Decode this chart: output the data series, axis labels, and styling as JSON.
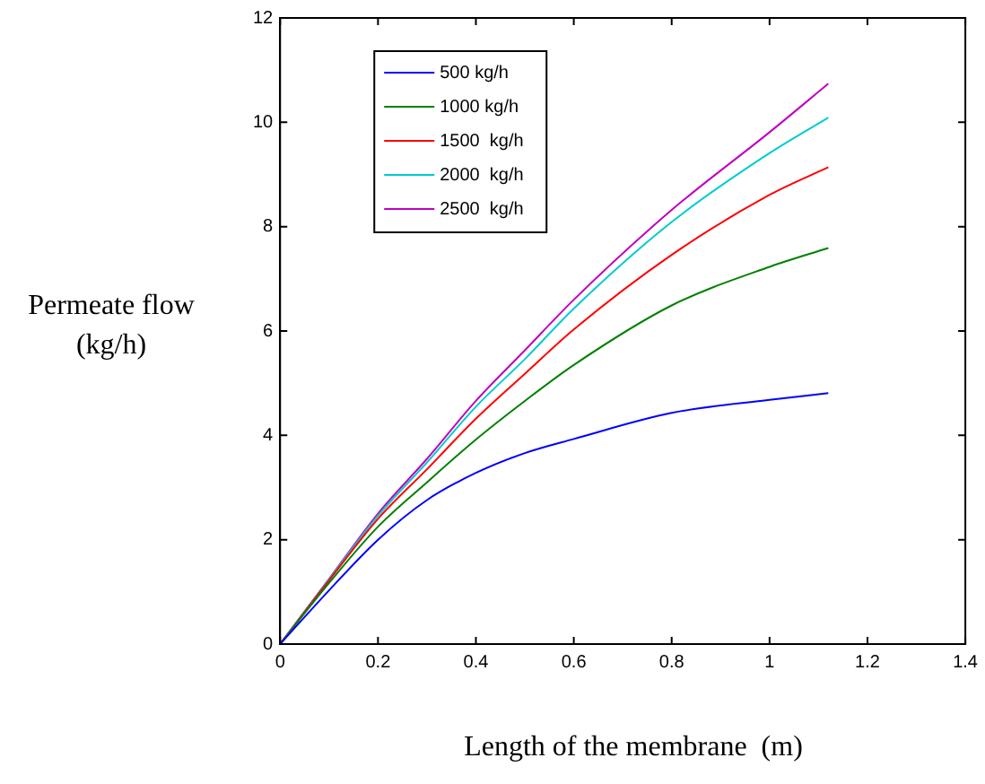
{
  "chart_data": {
    "type": "line",
    "xlabel": "Length of the membrane  (m)",
    "ylabel": "Permeate flow (kg/h)",
    "xlim": [
      0,
      1.4
    ],
    "xticks": [
      0,
      0.2,
      0.4,
      0.6,
      0.8,
      1,
      1.2,
      1.4
    ],
    "ylim": [
      0,
      12
    ],
    "yticks": [
      0,
      2,
      4,
      6,
      8,
      10,
      12
    ],
    "grid": false,
    "legend": "top left",
    "marker": "none",
    "line_style": "solid",
    "x": [
      0,
      0.1,
      0.2,
      0.3,
      0.4,
      0.5,
      0.6,
      0.8,
      1.0,
      1.12
    ],
    "series": [
      {
        "name": "500 kg/h",
        "color": "#0000ff",
        "values": [
          0,
          1.03,
          2.0,
          2.76,
          3.28,
          3.66,
          3.93,
          4.43,
          4.68,
          4.81
        ]
      },
      {
        "name": "1000 kg/h",
        "color": "#008000",
        "values": [
          0,
          1.17,
          2.25,
          3.1,
          3.92,
          4.66,
          5.35,
          6.49,
          7.23,
          7.59
        ]
      },
      {
        "name": "1500  kg/h",
        "color": "#ff0000",
        "values": [
          0,
          1.22,
          2.4,
          3.35,
          4.32,
          5.18,
          6.03,
          7.46,
          8.61,
          9.14
        ]
      },
      {
        "name": "2000  kg/h",
        "color": "#00cccc",
        "values": [
          0,
          1.24,
          2.46,
          3.48,
          4.55,
          5.46,
          6.43,
          8.09,
          9.41,
          10.09
        ]
      },
      {
        "name": "2500  kg/h",
        "color": "#bf00bf",
        "values": [
          0,
          1.25,
          2.5,
          3.55,
          4.66,
          5.63,
          6.6,
          8.32,
          9.81,
          10.74
        ]
      }
    ]
  }
}
